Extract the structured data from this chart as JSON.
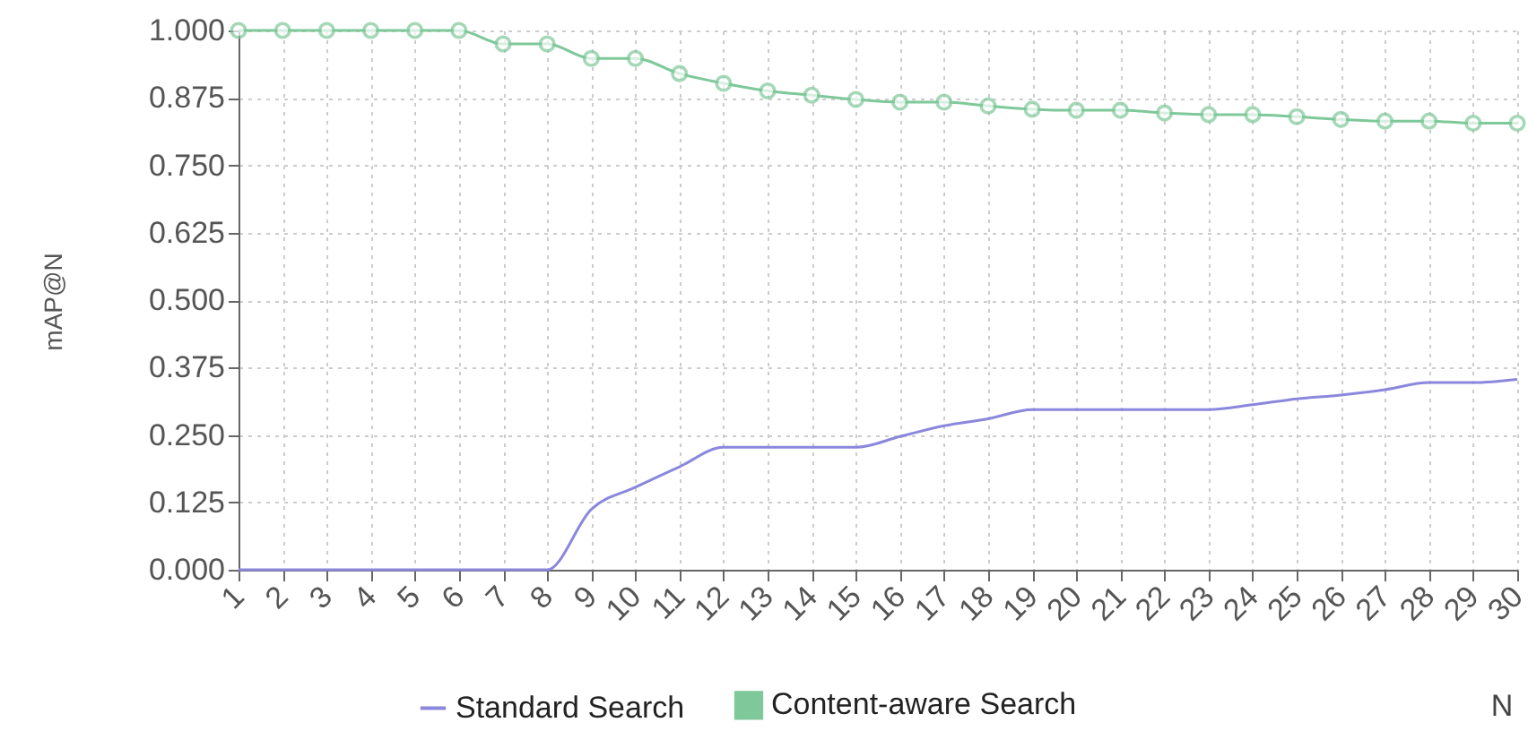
{
  "chart_data": {
    "type": "line",
    "xlabel": "N",
    "ylabel": "mAP@N",
    "x": [
      1,
      2,
      3,
      4,
      5,
      6,
      7,
      8,
      9,
      10,
      11,
      12,
      13,
      14,
      15,
      16,
      17,
      18,
      19,
      20,
      21,
      22,
      23,
      24,
      25,
      26,
      27,
      28,
      29,
      30
    ],
    "series": [
      {
        "name": "Standard Search",
        "color": "#8b87dc",
        "marker": "none",
        "values": [
          0,
          0,
          0,
          0,
          0,
          0,
          0,
          0,
          0.112,
          0.153,
          0.191,
          0.227,
          0.227,
          0.227,
          0.227,
          0.247,
          0.267,
          0.28,
          0.297,
          0.297,
          0.297,
          0.297,
          0.297,
          0.306,
          0.317,
          0.324,
          0.334,
          0.347,
          0.347,
          0.353
        ]
      },
      {
        "name": "Content-aware Search",
        "color": "#7ec89a",
        "marker": "circle",
        "values": [
          1,
          1,
          1,
          1,
          1,
          1,
          0.975,
          0.975,
          0.948,
          0.948,
          0.92,
          0.902,
          0.888,
          0.88,
          0.872,
          0.867,
          0.867,
          0.86,
          0.854,
          0.852,
          0.852,
          0.847,
          0.844,
          0.844,
          0.84,
          0.835,
          0.832,
          0.832,
          0.828,
          0.828
        ]
      }
    ],
    "xlim": [
      1,
      30
    ],
    "xticks": [
      1,
      2,
      3,
      4,
      5,
      6,
      7,
      8,
      9,
      10,
      11,
      12,
      13,
      14,
      15,
      16,
      17,
      18,
      19,
      20,
      21,
      22,
      23,
      24,
      25,
      26,
      27,
      28,
      29,
      30
    ],
    "ylim": [
      0,
      1
    ],
    "yticks": [
      {
        "value": 0,
        "label": "0.000"
      },
      {
        "value": 0.125,
        "label": "0.125"
      },
      {
        "value": 0.25,
        "label": "0.250"
      },
      {
        "value": 0.375,
        "label": "0.375"
      },
      {
        "value": 0.5,
        "label": "0.500"
      },
      {
        "value": 0.625,
        "label": "0.625"
      },
      {
        "value": 0.75,
        "label": "0.750"
      },
      {
        "value": 0.875,
        "label": "0.875"
      },
      {
        "value": 1,
        "label": "1.000"
      }
    ],
    "grid": true,
    "legend": "bottom"
  }
}
